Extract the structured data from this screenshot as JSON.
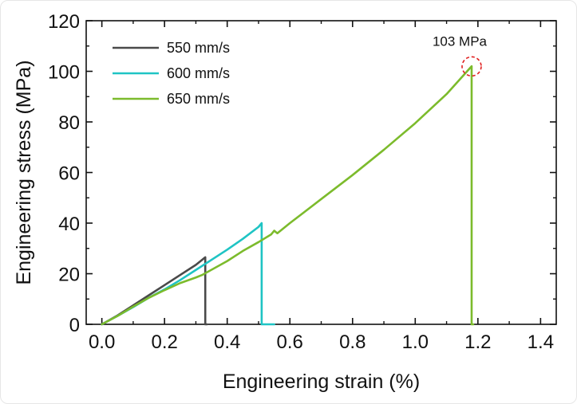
{
  "chart_data": {
    "type": "line",
    "xlabel": "Engineering strain (%)",
    "ylabel": "Engineering stress (MPa)",
    "xlim": [
      -0.05,
      1.45
    ],
    "ylim": [
      0,
      120
    ],
    "xticks": [
      0.0,
      0.2,
      0.4,
      0.6,
      0.8,
      1.0,
      1.2,
      1.4
    ],
    "xtick_labels": [
      "0.0",
      "0.2",
      "0.4",
      "0.6",
      "0.8",
      "1.0",
      "1.2",
      "1.4"
    ],
    "yticks": [
      0,
      20,
      40,
      60,
      80,
      100,
      120
    ],
    "ytick_labels": [
      "0",
      "20",
      "40",
      "60",
      "80",
      "100",
      "120"
    ],
    "grid": false,
    "legend_position": "top-left",
    "series": [
      {
        "name": "550 mm/s",
        "color": "#4a4a4a",
        "x": [
          0.0,
          0.05,
          0.1,
          0.15,
          0.2,
          0.25,
          0.3,
          0.33,
          0.33,
          0.335
        ],
        "y": [
          0,
          3.5,
          7.5,
          11.5,
          15.5,
          19.5,
          23.5,
          26.5,
          0,
          0
        ]
      },
      {
        "name": "600 mm/s",
        "color": "#1fc4c4",
        "x": [
          0.0,
          0.05,
          0.1,
          0.15,
          0.2,
          0.25,
          0.3,
          0.35,
          0.4,
          0.45,
          0.5,
          0.51,
          0.51,
          0.55
        ],
        "y": [
          0,
          3.3,
          6.8,
          10.5,
          13.8,
          17.5,
          21.5,
          25.5,
          29.5,
          33.8,
          38.5,
          40,
          0,
          0
        ]
      },
      {
        "name": "650 mm/s",
        "color": "#7cbb2c",
        "x": [
          0.0,
          0.05,
          0.1,
          0.15,
          0.2,
          0.25,
          0.3,
          0.32,
          0.4,
          0.45,
          0.5,
          0.54,
          0.55,
          0.56,
          0.6,
          0.7,
          0.8,
          0.9,
          1.0,
          1.1,
          1.18,
          1.18,
          1.185
        ],
        "y": [
          0,
          3.3,
          7.0,
          10.5,
          13.5,
          16.3,
          18.5,
          19.5,
          25.0,
          29.0,
          32.5,
          35.5,
          37.0,
          36.0,
          40.0,
          49.5,
          59.0,
          69.0,
          79.5,
          91.0,
          102.0,
          0,
          0
        ]
      }
    ],
    "annotations": [
      {
        "text": "103 MPa",
        "x": 1.18,
        "y": 101,
        "color": "#e02020"
      }
    ]
  }
}
